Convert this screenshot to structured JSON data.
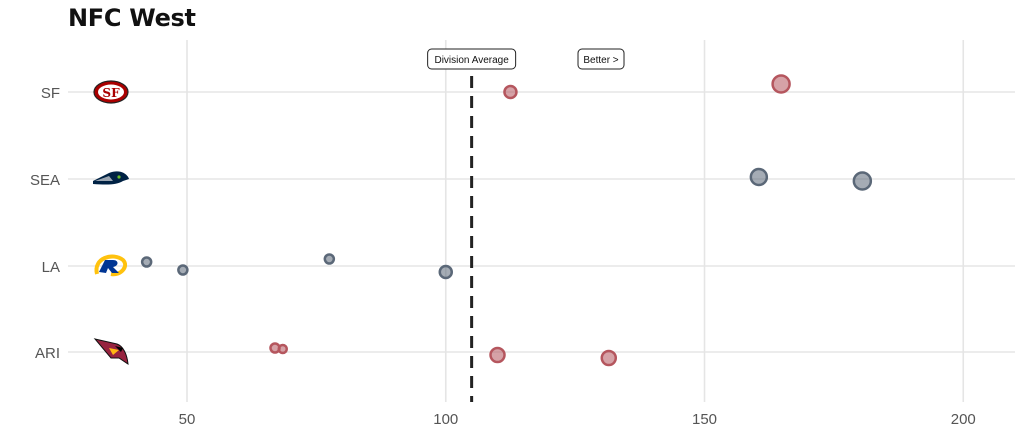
{
  "title": "NFC West",
  "chart_data": {
    "type": "scatter",
    "title": "NFC West",
    "xlabel": "",
    "ylabel": "",
    "xlim": [
      27,
      210
    ],
    "x_ticks": [
      50,
      100,
      150,
      200
    ],
    "grid": true,
    "categories": [
      "SF",
      "SEA",
      "LA",
      "ARI"
    ],
    "division_average": 105,
    "annotations": [
      "Division Average",
      "Better >"
    ],
    "series": [
      {
        "team": "SF",
        "color": "#b5565e",
        "logo": "49ers-logo",
        "points": [
          {
            "x": 112.5,
            "size": 6
          },
          {
            "x": 164.8,
            "size": 8.5
          }
        ]
      },
      {
        "team": "SEA",
        "color": "#5b6878",
        "logo": "seahawks-logo",
        "points": [
          {
            "x": 160.5,
            "size": 8
          },
          {
            "x": 180.5,
            "size": 8.5
          }
        ]
      },
      {
        "team": "LA",
        "color": "#5b6878",
        "logo": "rams-logo",
        "points": [
          {
            "x": 42.2,
            "size": 4.5
          },
          {
            "x": 49.2,
            "size": 4.5
          },
          {
            "x": 77.5,
            "size": 4.5
          },
          {
            "x": 100.0,
            "size": 6
          }
        ]
      },
      {
        "team": "ARI",
        "color": "#b5565e",
        "logo": "cardinals-logo",
        "points": [
          {
            "x": 67.0,
            "size": 4.5
          },
          {
            "x": 68.5,
            "size": 4
          },
          {
            "x": 110.0,
            "size": 7
          },
          {
            "x": 131.5,
            "size": 7
          }
        ]
      }
    ]
  }
}
